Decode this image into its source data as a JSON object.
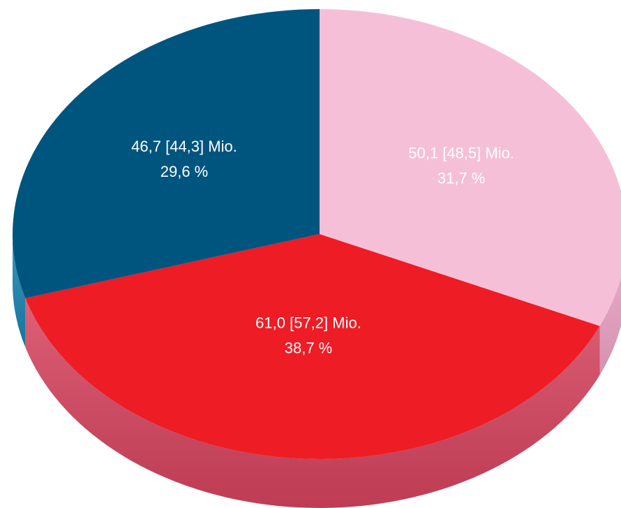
{
  "chart_data": {
    "type": "pie",
    "categories": [
      null,
      null,
      null
    ],
    "values": [
      31.7,
      38.7,
      29.6
    ],
    "value_labels": [
      "31,7 %",
      "38,7 %",
      "29,6 %"
    ],
    "labels": [
      "50,1 [48,5] Mio.",
      "61,0 [57,2] Mio.",
      "46,7 [44,3] Mio."
    ],
    "colors": [
      "#f5bfd8",
      "#ee1c25",
      "#00557f"
    ],
    "side_colors": [
      "#f1a6c8",
      "#d84560",
      "#1a86b4"
    ],
    "start_angle": -90,
    "direction": "clockwise"
  }
}
